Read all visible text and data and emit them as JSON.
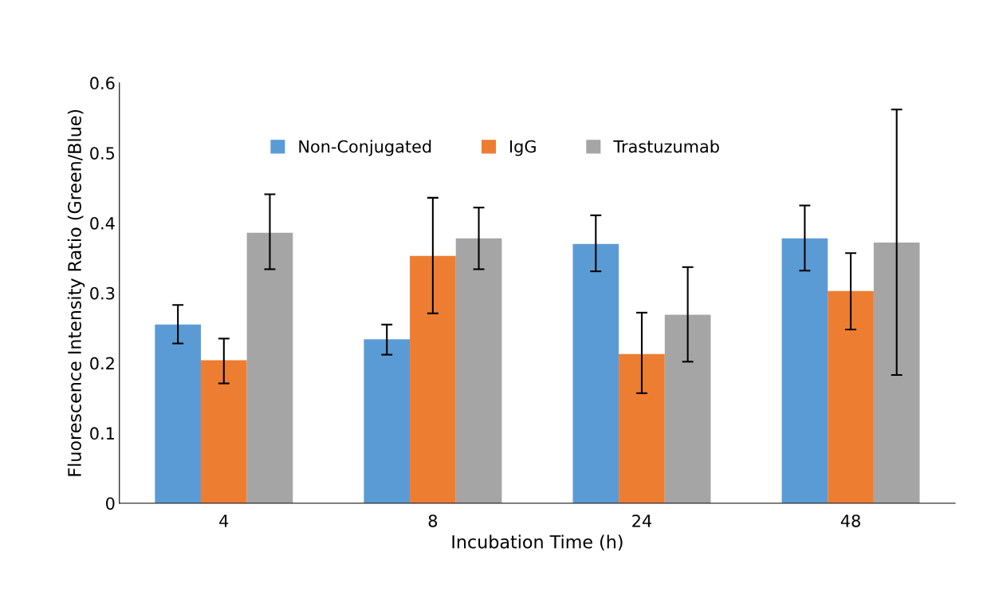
{
  "chart_data": {
    "type": "bar",
    "xlabel": "Incubation Time (h)",
    "ylabel": "Fluorescence Intensity Ratio (Green/Blue)",
    "categories": [
      "4",
      "8",
      "24",
      "48"
    ],
    "series": [
      {
        "name": "Non-Conjugated",
        "color": "#5b9bd5",
        "values": [
          0.255,
          0.234,
          0.37,
          0.378
        ],
        "errors": [
          [
            0.228,
            0.283
          ],
          [
            0.212,
            0.255
          ],
          [
            0.331,
            0.411
          ],
          [
            0.332,
            0.425
          ]
        ]
      },
      {
        "name": "IgG",
        "color": "#ed7d31",
        "values": [
          0.204,
          0.353,
          0.213,
          0.303
        ],
        "errors": [
          [
            0.171,
            0.235
          ],
          [
            0.271,
            0.436
          ],
          [
            0.157,
            0.272
          ],
          [
            0.248,
            0.357
          ]
        ]
      },
      {
        "name": "Trastuzumab",
        "color": "#a5a5a5",
        "values": [
          0.386,
          0.378,
          0.269,
          0.372
        ],
        "errors": [
          [
            0.334,
            0.441
          ],
          [
            0.334,
            0.422
          ],
          [
            0.202,
            0.337
          ],
          [
            0.183,
            0.562
          ]
        ]
      }
    ],
    "ylim": [
      0,
      0.6
    ],
    "yticks": [
      0,
      0.1,
      0.2,
      0.3,
      0.4,
      0.5,
      0.6
    ],
    "grid": false,
    "legend": "top"
  }
}
